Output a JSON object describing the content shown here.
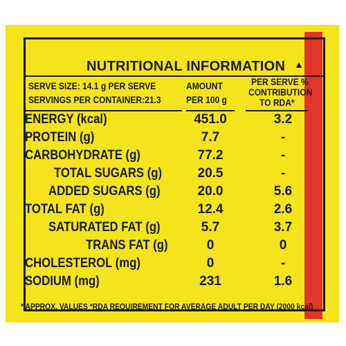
{
  "title": "NUTRITIONAL INFORMATION",
  "title_mark": "▲",
  "header": {
    "serve_size": "SERVE SIZE: 14.1 g PER SERVE",
    "servings": "SERVINGS PER CONTAINER:21.3",
    "amount_line1": "AMOUNT",
    "amount_line2": "PER 100 g",
    "rda_line1": "PER SERVE %",
    "rda_line2": "CONTRIBUTION",
    "rda_line3": "TO RDA*"
  },
  "rows": [
    {
      "name": "ENERGY (kcal)",
      "amount": "451.0",
      "rda": "3.2"
    },
    {
      "name": "PROTEIN (g)",
      "amount": "7.7",
      "rda": "-"
    },
    {
      "name": "CARBOHYDRATE (g)",
      "amount": "77.2",
      "rda": "-"
    },
    {
      "name": "TOTAL SUGARS (g)",
      "amount": "20.5",
      "rda": "-"
    },
    {
      "name": "ADDED SUGARS (g)",
      "amount": "20.0",
      "rda": "5.6"
    },
    {
      "name": "TOTAL FAT (g)",
      "amount": "12.4",
      "rda": "2.6"
    },
    {
      "name": "SATURATED FAT (g)",
      "amount": "5.7",
      "rda": "3.7"
    },
    {
      "name": "TRANS FAT (g)",
      "amount": "0",
      "rda": "0"
    },
    {
      "name": "CHOLESTEROL (mg)",
      "amount": "0",
      "rda": "-"
    },
    {
      "name": "SODIUM (mg)",
      "amount": "231",
      "rda": "1.6"
    }
  ],
  "footnote": "* APPROX. VALUES *RDA REQUIREMENT FOR AVERAGE ADULT PER DAY (2000 kcal)",
  "colors": {
    "panel": "#f4e41c",
    "strip": "#e0362b",
    "text": "#1a1a1a"
  }
}
